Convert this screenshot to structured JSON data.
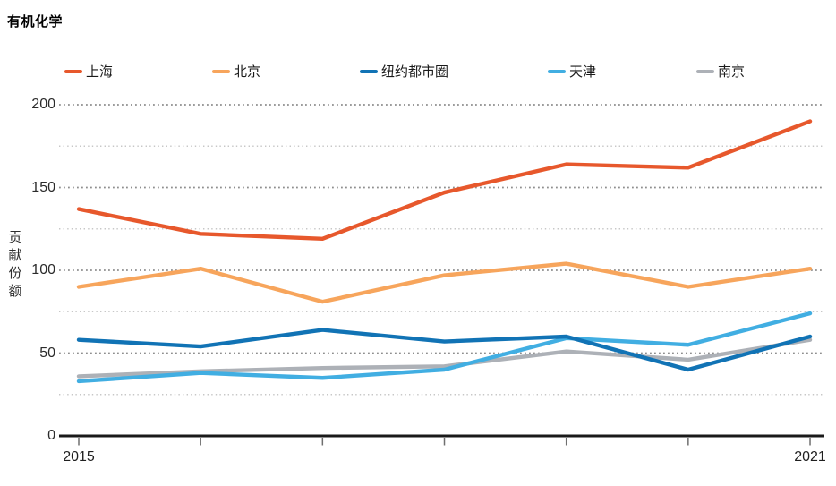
{
  "title": "有机化学",
  "chart_data": {
    "type": "line",
    "title": "有机化学",
    "xlabel": "",
    "ylabel": "贡献份额",
    "x": [
      2015,
      2016,
      2017,
      2018,
      2019,
      2020,
      2021
    ],
    "visible_xtick_labels": [
      "2015",
      "2021"
    ],
    "yticks": [
      0,
      50,
      100,
      150,
      200
    ],
    "minor_yticks": [
      25,
      75,
      125,
      175
    ],
    "ylim": [
      0,
      200
    ],
    "grid": "horizontal-dotted",
    "legend_position": "top",
    "series": [
      {
        "name": "上海",
        "color": "#E7582C",
        "values": [
          137,
          122,
          119,
          147,
          164,
          162,
          190
        ]
      },
      {
        "name": "北京",
        "color": "#F7A55C",
        "values": [
          90,
          101,
          81,
          97,
          104,
          90,
          101
        ]
      },
      {
        "name": "纽约都市圈",
        "color": "#1173B5",
        "values": [
          58,
          54,
          64,
          57,
          60,
          40,
          60
        ]
      },
      {
        "name": "天津",
        "color": "#41AEE2",
        "values": [
          33,
          38,
          35,
          40,
          59,
          55,
          74
        ]
      },
      {
        "name": "南京",
        "color": "#ADB1B7",
        "values": [
          36,
          39,
          41,
          42,
          51,
          46,
          58
        ]
      }
    ]
  }
}
